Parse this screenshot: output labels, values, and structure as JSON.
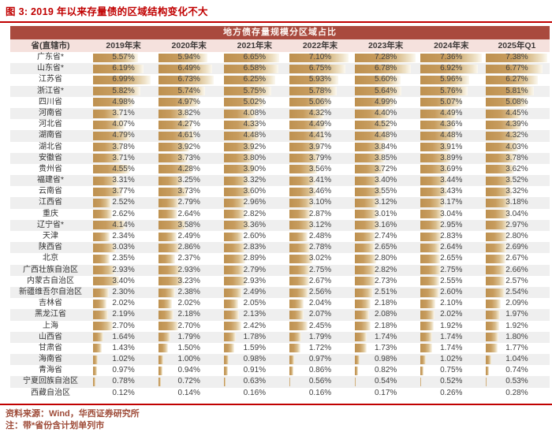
{
  "figure": {
    "title": "图 3: 2019 年以来存量债的区域结构变化不大",
    "source_line": "资料来源：Wind，华西证券研究所",
    "note_line": "注：带*省份含计划单列市"
  },
  "colors": {
    "title_red": "#c00000",
    "rule_red": "#c00000",
    "banner_bg": "#a94a3e",
    "banner_text": "#fdf6f2",
    "header_bg": "#f5e1dd",
    "stripe_gray": "#efefef",
    "bar_gold": "#be9150",
    "cell_text": "#3f3f3f",
    "footer_text": "#9e4b38"
  },
  "chart_data": {
    "type": "table",
    "title": "地方债存量规模分区域占比",
    "row_header": "省(直辖市)",
    "columns": [
      "2019年末",
      "2020年末",
      "2021年末",
      "2022年末",
      "2023年末",
      "2024年末",
      "2025年Q1"
    ],
    "unit": "percent",
    "bar_scale_max": 7.38,
    "rows": [
      {
        "province": "广东省*",
        "values": [
          5.57,
          5.94,
          6.65,
          7.1,
          7.28,
          7.36,
          7.38
        ]
      },
      {
        "province": "山东省*",
        "values": [
          6.19,
          6.49,
          6.58,
          6.75,
          6.78,
          6.92,
          6.77
        ]
      },
      {
        "province": "江苏省",
        "values": [
          6.99,
          6.73,
          6.25,
          5.93,
          5.6,
          5.96,
          6.27
        ]
      },
      {
        "province": "浙江省*",
        "values": [
          5.82,
          5.74,
          5.75,
          5.78,
          5.64,
          5.76,
          5.81
        ]
      },
      {
        "province": "四川省",
        "values": [
          4.98,
          4.97,
          5.02,
          5.06,
          4.99,
          5.07,
          5.08
        ]
      },
      {
        "province": "河南省",
        "values": [
          3.71,
          3.82,
          4.08,
          4.32,
          4.4,
          4.49,
          4.45
        ]
      },
      {
        "province": "河北省",
        "values": [
          4.07,
          4.27,
          4.33,
          4.49,
          4.52,
          4.36,
          4.39
        ]
      },
      {
        "province": "湖南省",
        "values": [
          4.79,
          4.61,
          4.48,
          4.41,
          4.48,
          4.48,
          4.32
        ]
      },
      {
        "province": "湖北省",
        "values": [
          3.78,
          3.92,
          3.92,
          3.97,
          3.84,
          3.91,
          4.03
        ]
      },
      {
        "province": "安徽省",
        "values": [
          3.71,
          3.73,
          3.8,
          3.79,
          3.85,
          3.89,
          3.78
        ]
      },
      {
        "province": "贵州省",
        "values": [
          4.55,
          4.28,
          3.9,
          3.56,
          3.72,
          3.69,
          3.62
        ]
      },
      {
        "province": "福建省*",
        "values": [
          3.31,
          3.25,
          3.32,
          3.41,
          3.4,
          3.44,
          3.52
        ]
      },
      {
        "province": "云南省",
        "values": [
          3.77,
          3.73,
          3.6,
          3.46,
          3.55,
          3.43,
          3.32
        ]
      },
      {
        "province": "江西省",
        "values": [
          2.52,
          2.79,
          2.96,
          3.1,
          3.12,
          3.17,
          3.18
        ]
      },
      {
        "province": "重庆",
        "values": [
          2.62,
          2.64,
          2.82,
          2.87,
          3.01,
          3.04,
          3.04
        ]
      },
      {
        "province": "辽宁省*",
        "values": [
          4.14,
          3.58,
          3.36,
          3.12,
          3.16,
          2.95,
          2.97
        ]
      },
      {
        "province": "天津",
        "values": [
          2.34,
          2.49,
          2.6,
          2.48,
          2.74,
          2.83,
          2.8
        ]
      },
      {
        "province": "陕西省",
        "values": [
          3.03,
          2.86,
          2.83,
          2.78,
          2.65,
          2.64,
          2.69
        ]
      },
      {
        "province": "北京",
        "values": [
          2.35,
          2.37,
          2.89,
          3.02,
          2.8,
          2.65,
          2.67
        ]
      },
      {
        "province": "广西壮族自治区",
        "values": [
          2.93,
          2.93,
          2.79,
          2.75,
          2.82,
          2.75,
          2.66
        ]
      },
      {
        "province": "内蒙古自治区",
        "values": [
          3.4,
          3.23,
          2.93,
          2.67,
          2.73,
          2.55,
          2.57
        ]
      },
      {
        "province": "新疆维吾尔自治区",
        "values": [
          2.3,
          2.38,
          2.49,
          2.56,
          2.51,
          2.6,
          2.54
        ]
      },
      {
        "province": "吉林省",
        "values": [
          2.02,
          2.02,
          2.05,
          2.04,
          2.18,
          2.1,
          2.09
        ]
      },
      {
        "province": "黑龙江省",
        "values": [
          2.19,
          2.18,
          2.13,
          2.07,
          2.08,
          2.02,
          1.97
        ]
      },
      {
        "province": "上海",
        "values": [
          2.7,
          2.7,
          2.42,
          2.45,
          2.18,
          1.92,
          1.92
        ]
      },
      {
        "province": "山西省",
        "values": [
          1.64,
          1.79,
          1.78,
          1.79,
          1.74,
          1.74,
          1.8
        ]
      },
      {
        "province": "甘肃省",
        "values": [
          1.43,
          1.5,
          1.59,
          1.72,
          1.73,
          1.74,
          1.77
        ]
      },
      {
        "province": "海南省",
        "values": [
          1.02,
          1.0,
          0.98,
          0.97,
          0.98,
          1.02,
          1.04
        ]
      },
      {
        "province": "青海省",
        "values": [
          0.97,
          0.94,
          0.91,
          0.86,
          0.82,
          0.75,
          0.74
        ]
      },
      {
        "province": "宁夏回族自治区",
        "values": [
          0.78,
          0.72,
          0.63,
          0.56,
          0.54,
          0.52,
          0.53
        ]
      },
      {
        "province": "西藏自治区",
        "values": [
          0.12,
          0.14,
          0.16,
          0.16,
          0.17,
          0.26,
          0.28
        ]
      }
    ]
  }
}
